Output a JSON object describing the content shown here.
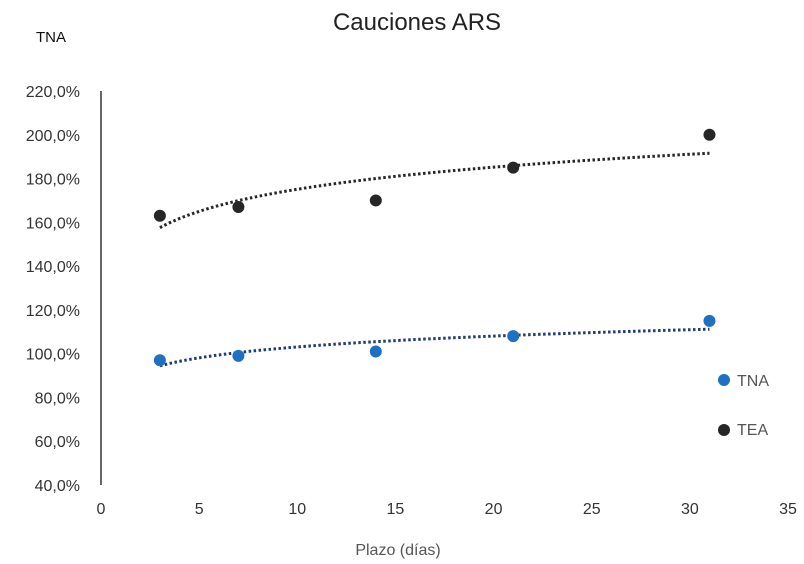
{
  "chart_data": {
    "type": "scatter",
    "title": "Cauciones ARS",
    "xlabel": "Plazo (días)",
    "ylabel": "TNA",
    "xlim": [
      0,
      35
    ],
    "ylim": [
      40,
      220
    ],
    "x_ticks": [
      0,
      5,
      10,
      15,
      20,
      25,
      30,
      35
    ],
    "x_tick_labels": [
      "0",
      "5",
      "10",
      "15",
      "20",
      "25",
      "30",
      "35"
    ],
    "y_ticks": [
      40,
      60,
      80,
      100,
      120,
      140,
      160,
      180,
      200,
      220
    ],
    "y_tick_labels": [
      "40,0%",
      "60,0%",
      "80,0%",
      "100,0%",
      "120,0%",
      "140,0%",
      "160,0%",
      "180,0%",
      "200,0%",
      "220,0%"
    ],
    "grid": false,
    "legend_position": "bottom-right",
    "series": [
      {
        "name": "TNA",
        "color": "#1F6FC5",
        "trendline_color": "#1F3A78",
        "x": [
          3,
          7,
          14,
          21,
          31
        ],
        "y": [
          97,
          99,
          101,
          108,
          115
        ]
      },
      {
        "name": "TEA",
        "color": "#262626",
        "trendline_color": "#262626",
        "x": [
          3,
          7,
          14,
          21,
          31
        ],
        "y": [
          163,
          167,
          170,
          185,
          200
        ]
      }
    ]
  }
}
